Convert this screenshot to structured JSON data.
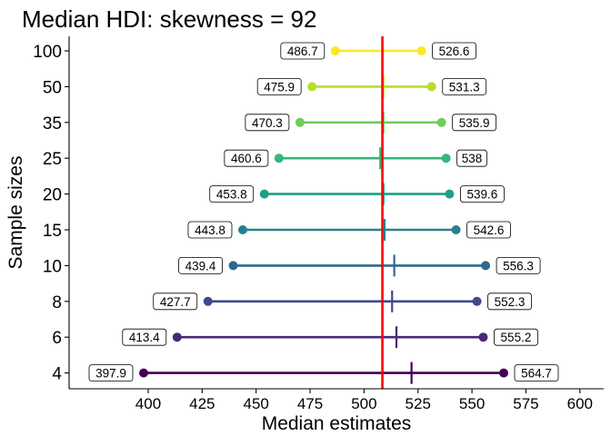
{
  "chart_data": {
    "type": "interval",
    "title": "Median HDI: skewness = 92",
    "xlabel": "Median estimates",
    "ylabel": "Sample sizes",
    "xlim": [
      375,
      610
    ],
    "x_ticks": [
      400,
      425,
      450,
      475,
      500,
      525,
      550,
      575,
      600
    ],
    "reference_line": {
      "x": 508.5,
      "color": "#ff0000"
    },
    "grid": false,
    "legend": "none",
    "rows": [
      {
        "sample_size": "4",
        "lower": 397.9,
        "upper": 564.7,
        "median": 522.0,
        "lower_label": "397.9",
        "upper_label": "564.7",
        "color": "#440154"
      },
      {
        "sample_size": "6",
        "lower": 413.4,
        "upper": 555.2,
        "median": 515.0,
        "lower_label": "413.4",
        "upper_label": "555.2",
        "color": "#482878"
      },
      {
        "sample_size": "8",
        "lower": 427.7,
        "upper": 552.3,
        "median": 513.0,
        "lower_label": "427.7",
        "upper_label": "552.3",
        "color": "#3e4a89"
      },
      {
        "sample_size": "10",
        "lower": 439.4,
        "upper": 556.3,
        "median": 514.0,
        "lower_label": "439.4",
        "upper_label": "556.3",
        "color": "#31688e"
      },
      {
        "sample_size": "15",
        "lower": 443.8,
        "upper": 542.6,
        "median": 509.5,
        "lower_label": "443.8",
        "upper_label": "542.6",
        "color": "#26828e"
      },
      {
        "sample_size": "20",
        "lower": 453.8,
        "upper": 539.6,
        "median": 509.0,
        "lower_label": "453.8",
        "upper_label": "539.6",
        "color": "#1f9e89"
      },
      {
        "sample_size": "25",
        "lower": 460.6,
        "upper": 538.0,
        "median": 507.5,
        "lower_label": "460.6",
        "upper_label": "538",
        "color": "#35b779"
      },
      {
        "sample_size": "35",
        "lower": 470.3,
        "upper": 535.9,
        "median": 509.0,
        "lower_label": "470.3",
        "upper_label": "535.9",
        "color": "#6ece58"
      },
      {
        "sample_size": "50",
        "lower": 475.9,
        "upper": 531.3,
        "median": 509.0,
        "lower_label": "475.9",
        "upper_label": "531.3",
        "color": "#b5de2b"
      },
      {
        "sample_size": "100",
        "lower": 486.7,
        "upper": 526.6,
        "median": 508.5,
        "lower_label": "486.7",
        "upper_label": "526.6",
        "color": "#fde725"
      }
    ]
  }
}
